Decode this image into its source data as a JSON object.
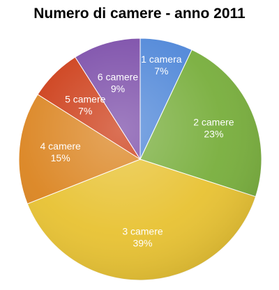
{
  "chart_data": {
    "type": "pie",
    "title": "Numero di camere - anno 2011",
    "slices": [
      {
        "label": "1 camera",
        "percent_label": "7%",
        "value": 7,
        "color": "#4E86D8"
      },
      {
        "label": "2 camere",
        "percent_label": "23%",
        "value": 23,
        "color": "#78AE3C"
      },
      {
        "label": "3 camere",
        "percent_label": "39%",
        "value": 39,
        "color": "#E8C232"
      },
      {
        "label": "4 camere",
        "percent_label": "15%",
        "value": 15,
        "color": "#DB8420"
      },
      {
        "label": "5 camere",
        "percent_label": "7%",
        "value": 7,
        "color": "#CC3A14"
      },
      {
        "label": "6 camere",
        "percent_label": "9%",
        "value": 9,
        "color": "#7A4BA8"
      }
    ]
  }
}
